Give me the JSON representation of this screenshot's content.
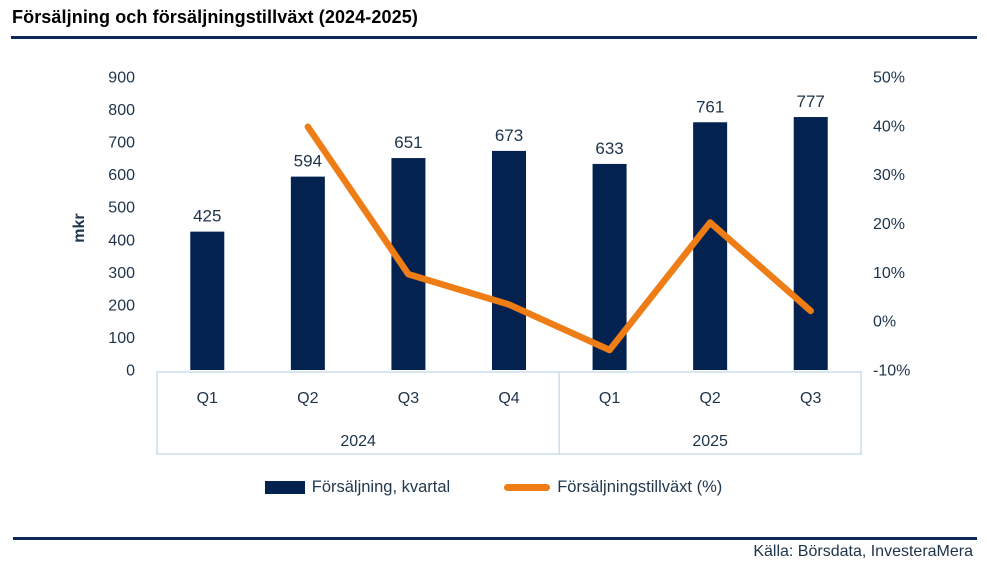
{
  "title": "Försäljning och försäljningstillväxt (2024-2025)",
  "source": "Källa: Börsdata, InvesteraMera",
  "colors": {
    "bar": "#03224F",
    "line": "#EE7D16",
    "axis_text": "#1D334A",
    "value_label": "#1D334A",
    "box_border": "#CBDDF0",
    "rule": "#0B2A5B"
  },
  "chart_data": {
    "type": "bar",
    "subtype": "bar+line-combo",
    "title": "Försäljning och försäljningstillväxt (2024-2025)",
    "categories": [
      "Q1",
      "Q2",
      "Q3",
      "Q4",
      "Q1",
      "Q2",
      "Q3"
    ],
    "year_groups": [
      {
        "label": "2024",
        "start": 0,
        "span": 4
      },
      {
        "label": "2025",
        "start": 4,
        "span": 3
      }
    ],
    "series": [
      {
        "name": "Försäljning, kvartal",
        "type": "bar",
        "axis": "left",
        "values": [
          425,
          594,
          651,
          673,
          633,
          761,
          777
        ]
      },
      {
        "name": "Försäljningstillväxt (%)",
        "type": "line",
        "axis": "right",
        "values": [
          null,
          39.8,
          9.6,
          3.4,
          -5.9,
          20.2,
          2.1
        ]
      }
    ],
    "left_axis": {
      "label": "mkr",
      "range": [
        0,
        900
      ],
      "tick_values": [
        900,
        800,
        700,
        600,
        500,
        400,
        300,
        200,
        100,
        0
      ],
      "tick_labels": [
        "900",
        "800",
        "700",
        "600",
        "500",
        "400",
        "300",
        "200",
        "100",
        "0"
      ]
    },
    "right_axis": {
      "range": [
        -10,
        50
      ],
      "tick_values": [
        50,
        40,
        30,
        20,
        10,
        0,
        -10
      ],
      "tick_labels": [
        "50%",
        "40%",
        "30%",
        "20%",
        "10%",
        "0%",
        "-10%"
      ]
    },
    "legend_position": "bottom",
    "grid": false
  }
}
